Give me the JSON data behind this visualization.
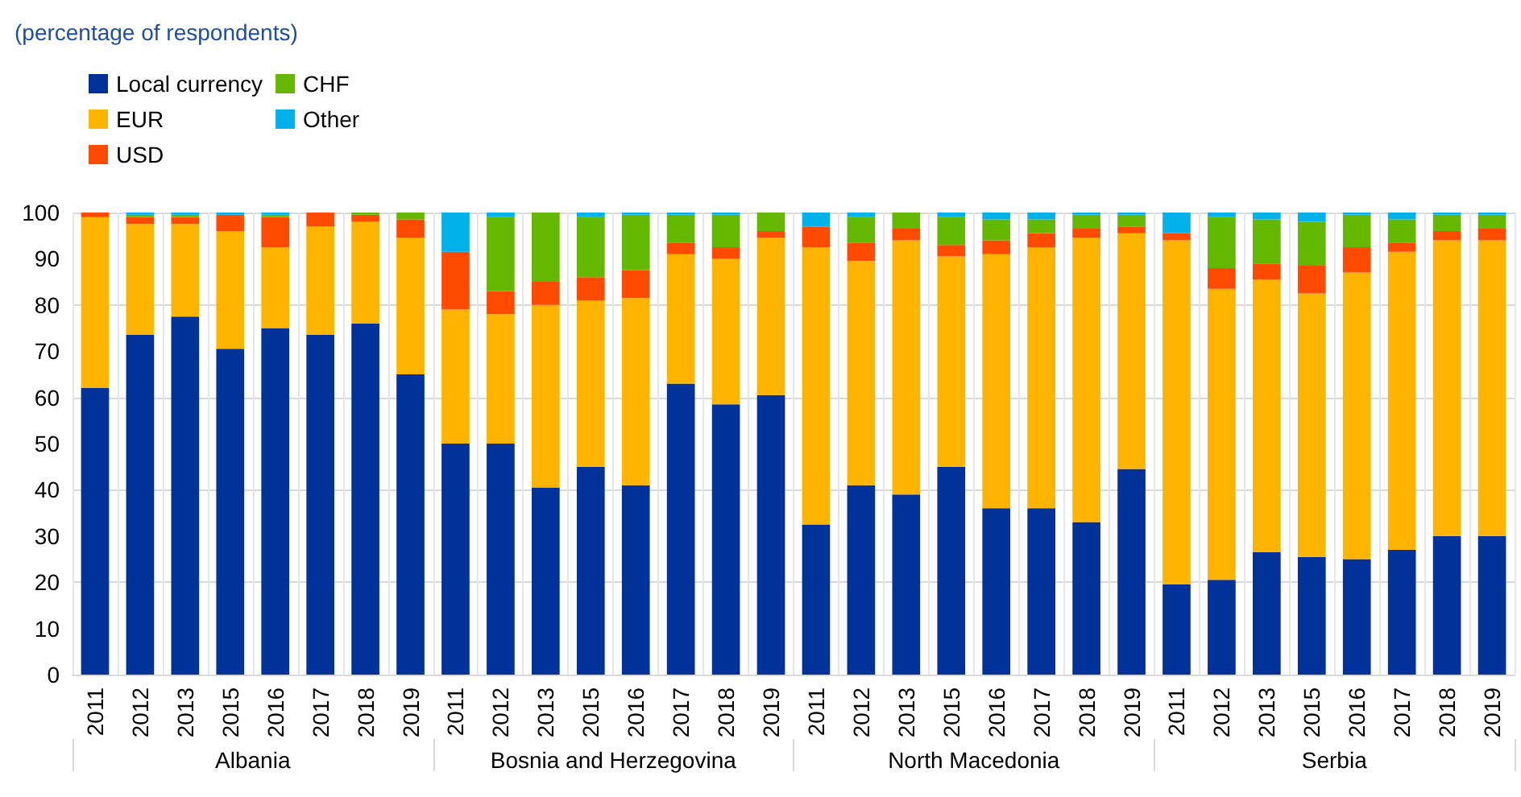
{
  "chart_data": {
    "type": "bar",
    "subtitle": "(percentage of respondents)",
    "stacked": true,
    "categories": [
      "2011",
      "2012",
      "2013",
      "2015",
      "2016",
      "2017",
      "2018",
      "2019",
      "2011",
      "2012",
      "2013",
      "2015",
      "2016",
      "2017",
      "2018",
      "2019",
      "2011",
      "2012",
      "2013",
      "2015",
      "2016",
      "2017",
      "2018",
      "2019",
      "2011",
      "2012",
      "2013",
      "2015",
      "2016",
      "2017",
      "2018",
      "2019"
    ],
    "annotations": [
      "Albania",
      "Bosnia and Herzegovina",
      "North Macedonia",
      "Serbia"
    ],
    "series": [
      {
        "name": "Local currency",
        "color": "#003299",
        "values": [
          62,
          73.5,
          77.5,
          70.5,
          75,
          73.5,
          76,
          65,
          50,
          50,
          40.5,
          45,
          41,
          63,
          58.5,
          60.5,
          32.5,
          41,
          39,
          45,
          36,
          36,
          33,
          44.5,
          19.5,
          20.5,
          26.5,
          25.5,
          25,
          27,
          30,
          30
        ]
      },
      {
        "name": "EUR",
        "color": "#ffb400",
        "values": [
          37,
          24,
          20,
          25.5,
          17.5,
          23.5,
          22,
          29.5,
          29,
          28,
          39.5,
          36,
          40.5,
          28,
          31.5,
          34,
          60,
          48.5,
          55,
          45.5,
          55,
          56.5,
          61.5,
          51,
          74.5,
          63,
          59,
          57,
          62,
          64.5,
          64,
          64
        ]
      },
      {
        "name": "USD",
        "color": "#ff4b00",
        "values": [
          1,
          1.5,
          1.5,
          3.5,
          6.5,
          3,
          1.5,
          4,
          12.5,
          5,
          5,
          5,
          6,
          2.5,
          2.5,
          1.5,
          4.5,
          4,
          2.5,
          2.5,
          3,
          3,
          2,
          1.5,
          1.5,
          4.5,
          3.5,
          6,
          5.5,
          2,
          2,
          2.5
        ]
      },
      {
        "name": "CHF",
        "color": "#65b800",
        "values": [
          0,
          0.5,
          0.5,
          0,
          0.5,
          0,
          0.5,
          1.5,
          0,
          16,
          15,
          13,
          12,
          6,
          7,
          4,
          0,
          5.5,
          3.5,
          6,
          4.5,
          3,
          3,
          2.5,
          0,
          11,
          9.5,
          9.5,
          7,
          5,
          3.5,
          3
        ]
      },
      {
        "name": "Other",
        "color": "#00b1ea",
        "values": [
          0,
          0.5,
          0.5,
          0.5,
          0.5,
          0,
          0,
          0,
          8.5,
          1,
          0,
          1,
          0.5,
          0.5,
          0.5,
          0,
          3,
          1,
          0,
          1,
          1.5,
          1.5,
          0.5,
          0.5,
          4.5,
          1,
          1.5,
          2,
          0.5,
          1.5,
          0.5,
          0.5
        ]
      }
    ],
    "ylim": [
      0,
      100
    ],
    "yticks": [
      0,
      10,
      20,
      30,
      40,
      50,
      60,
      70,
      80,
      90,
      100
    ],
    "grid": true,
    "legend": "top left"
  }
}
